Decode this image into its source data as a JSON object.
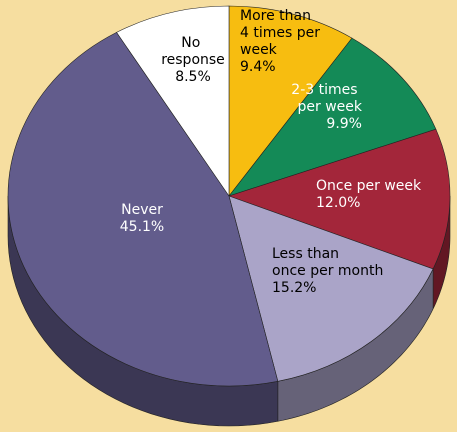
{
  "chart_data": {
    "type": "pie",
    "categories": [
      "More than 4 times per week",
      "2-3 times per week",
      "Once per week",
      "Less than once per month",
      "Never",
      "No response"
    ],
    "values": [
      9.4,
      9.9,
      12.0,
      15.2,
      45.1,
      8.5
    ],
    "value_labels": [
      "9.4%",
      "9.9%",
      "12.0%",
      "15.2%",
      "45.1%",
      "8.5%"
    ],
    "colors": [
      "#f7bd10",
      "#148a57",
      "#a3263a",
      "#aaa4c8",
      "#625c8c",
      "#ffffff"
    ]
  }
}
